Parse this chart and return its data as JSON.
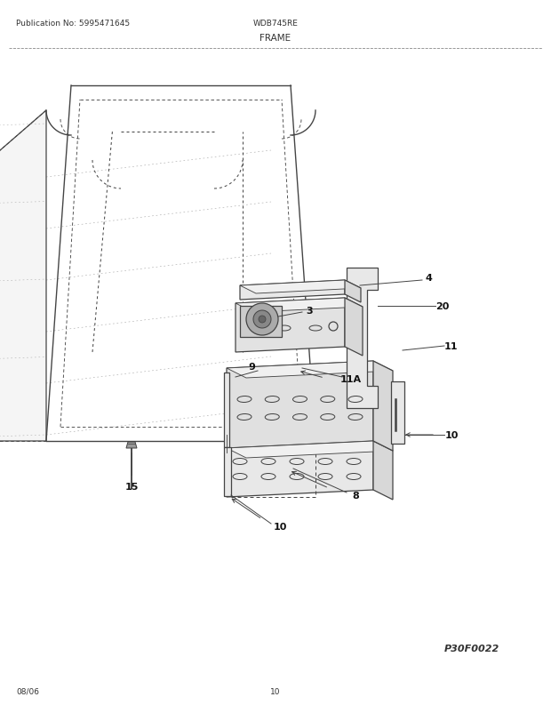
{
  "title": "FRAME",
  "pub_no": "Publication No: 5995471645",
  "model": "WDB745RE",
  "date": "08/06",
  "page": "10",
  "diagram_code": "P30F0022",
  "bg_color": "#ffffff",
  "line_color": "#444444",
  "lw": 0.9
}
